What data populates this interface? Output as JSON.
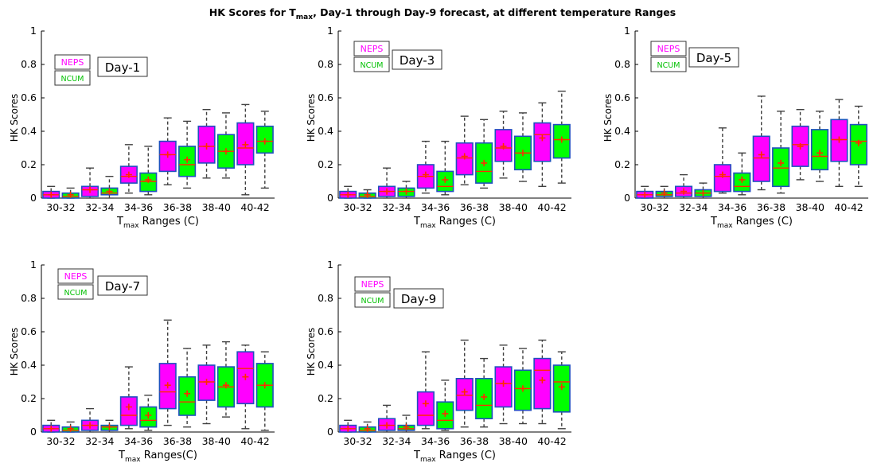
{
  "figure": {
    "title_main": "HK Scores for T",
    "title_sub": "max",
    "title_rest": ", Day-1 through Day-9 forecast, at different temperature Ranges"
  },
  "colors": {
    "neps_fill": "#ff00ff",
    "ncum_fill": "#00ff00",
    "box_edge": "#1f4fbf",
    "median": "#ff2a00",
    "mean_marker": "#ff2a00",
    "whisker": "#404040",
    "neps_legend_text": "#ff00ff",
    "ncum_legend_text": "#00c000"
  },
  "chart_data": [
    {
      "type": "boxplot",
      "panel_label": "Day-1",
      "xlabel_main": "T",
      "xlabel_sub": "max",
      "xlabel_rest": " Ranges (C)",
      "ylabel": "HK Scores",
      "ylim": [
        0,
        1
      ],
      "yticks": [
        "0",
        "0.2",
        "0.4",
        "0.6",
        "0.8",
        "1"
      ],
      "categories": [
        "30-32",
        "32-34",
        "34-36",
        "36-38",
        "38-40",
        "40-42"
      ],
      "legend": [
        "NEPS",
        "NCUM"
      ],
      "series": [
        {
          "name": "NEPS",
          "boxes": [
            {
              "min": 0,
              "q1": 0,
              "median": 0.02,
              "q3": 0.04,
              "max": 0.07,
              "mean": 0.02
            },
            {
              "min": 0,
              "q1": 0.01,
              "median": 0.05,
              "q3": 0.07,
              "max": 0.18,
              "mean": 0.05
            },
            {
              "min": 0.03,
              "q1": 0.09,
              "median": 0.13,
              "q3": 0.19,
              "max": 0.32,
              "mean": 0.14
            },
            {
              "min": 0.08,
              "q1": 0.16,
              "median": 0.26,
              "q3": 0.34,
              "max": 0.48,
              "mean": 0.26
            },
            {
              "min": 0.12,
              "q1": 0.21,
              "median": 0.31,
              "q3": 0.43,
              "max": 0.53,
              "mean": 0.31
            },
            {
              "min": 0.02,
              "q1": 0.2,
              "median": 0.3,
              "q3": 0.45,
              "max": 0.56,
              "mean": 0.32
            }
          ]
        },
        {
          "name": "NCUM",
          "boxes": [
            {
              "min": 0,
              "q1": 0,
              "median": 0.01,
              "q3": 0.03,
              "max": 0.06,
              "mean": 0.02
            },
            {
              "min": 0,
              "q1": 0.02,
              "median": 0.03,
              "q3": 0.06,
              "max": 0.13,
              "mean": 0.04
            },
            {
              "min": 0.02,
              "q1": 0.04,
              "median": 0.1,
              "q3": 0.15,
              "max": 0.31,
              "mean": 0.11
            },
            {
              "min": 0.06,
              "q1": 0.13,
              "median": 0.2,
              "q3": 0.31,
              "max": 0.46,
              "mean": 0.23
            },
            {
              "min": 0.12,
              "q1": 0.18,
              "median": 0.28,
              "q3": 0.38,
              "max": 0.51,
              "mean": 0.28
            },
            {
              "min": 0.06,
              "q1": 0.27,
              "median": 0.34,
              "q3": 0.43,
              "max": 0.52,
              "mean": 0.34
            }
          ]
        }
      ]
    },
    {
      "type": "boxplot",
      "panel_label": "Day-3",
      "xlabel_main": "T",
      "xlabel_sub": "max",
      "xlabel_rest": " Ranges (C)",
      "ylabel": "HK Scores",
      "ylim": [
        0,
        1
      ],
      "yticks": [
        "0",
        "0.2",
        "0.4",
        "0.6",
        "0.8",
        "1"
      ],
      "categories": [
        "30-32",
        "32-34",
        "34-36",
        "36-38",
        "38-40",
        "40-42"
      ],
      "legend": [
        "NEPS",
        "NCUM"
      ],
      "series": [
        {
          "name": "NEPS",
          "boxes": [
            {
              "min": 0,
              "q1": 0,
              "median": 0.02,
              "q3": 0.04,
              "max": 0.07,
              "mean": 0.02
            },
            {
              "min": 0,
              "q1": 0.01,
              "median": 0.04,
              "q3": 0.07,
              "max": 0.18,
              "mean": 0.04
            },
            {
              "min": 0.03,
              "q1": 0.06,
              "median": 0.13,
              "q3": 0.2,
              "max": 0.34,
              "mean": 0.14
            },
            {
              "min": 0.08,
              "q1": 0.14,
              "median": 0.24,
              "q3": 0.33,
              "max": 0.49,
              "mean": 0.25
            },
            {
              "min": 0.12,
              "q1": 0.22,
              "median": 0.3,
              "q3": 0.41,
              "max": 0.52,
              "mean": 0.31
            },
            {
              "min": 0.07,
              "q1": 0.22,
              "median": 0.38,
              "q3": 0.45,
              "max": 0.57,
              "mean": 0.36
            }
          ]
        },
        {
          "name": "NCUM",
          "boxes": [
            {
              "min": 0,
              "q1": 0,
              "median": 0.01,
              "q3": 0.03,
              "max": 0.05,
              "mean": 0.02
            },
            {
              "min": 0,
              "q1": 0.01,
              "median": 0.04,
              "q3": 0.06,
              "max": 0.1,
              "mean": 0.04
            },
            {
              "min": 0.02,
              "q1": 0.04,
              "median": 0.07,
              "q3": 0.16,
              "max": 0.34,
              "mean": 0.11
            },
            {
              "min": 0.06,
              "q1": 0.09,
              "median": 0.16,
              "q3": 0.33,
              "max": 0.47,
              "mean": 0.21
            },
            {
              "min": 0.1,
              "q1": 0.17,
              "median": 0.27,
              "q3": 0.37,
              "max": 0.51,
              "mean": 0.27
            },
            {
              "min": 0.09,
              "q1": 0.24,
              "median": 0.35,
              "q3": 0.44,
              "max": 0.64,
              "mean": 0.35
            }
          ]
        }
      ]
    },
    {
      "type": "boxplot",
      "panel_label": "Day-5",
      "xlabel_main": "T",
      "xlabel_sub": "max",
      "xlabel_rest": " Ranges (C)",
      "ylabel": "HK Scores",
      "ylim": [
        0,
        1
      ],
      "yticks": [
        "0",
        "0.2",
        "0.4",
        "0.6",
        "0.8",
        "1"
      ],
      "categories": [
        "30-32",
        "32-34",
        "34-36",
        "36-38",
        "38-40",
        "40-42"
      ],
      "legend": [
        "NEPS",
        "NCUM"
      ],
      "series": [
        {
          "name": "NEPS",
          "boxes": [
            {
              "min": 0,
              "q1": 0,
              "median": 0.02,
              "q3": 0.04,
              "max": 0.07,
              "mean": 0.02
            },
            {
              "min": 0,
              "q1": 0.01,
              "median": 0.03,
              "q3": 0.07,
              "max": 0.14,
              "mean": 0.04
            },
            {
              "min": 0.03,
              "q1": 0.04,
              "median": 0.13,
              "q3": 0.2,
              "max": 0.42,
              "mean": 0.14
            },
            {
              "min": 0.05,
              "q1": 0.1,
              "median": 0.24,
              "q3": 0.37,
              "max": 0.61,
              "mean": 0.26
            },
            {
              "min": 0.11,
              "q1": 0.19,
              "median": 0.32,
              "q3": 0.43,
              "max": 0.53,
              "mean": 0.31
            },
            {
              "min": 0.07,
              "q1": 0.22,
              "median": 0.35,
              "q3": 0.47,
              "max": 0.59,
              "mean": 0.35
            }
          ]
        },
        {
          "name": "NCUM",
          "boxes": [
            {
              "min": 0,
              "q1": 0.01,
              "median": 0.02,
              "q3": 0.04,
              "max": 0.07,
              "mean": 0.03
            },
            {
              "min": 0,
              "q1": 0.01,
              "median": 0.03,
              "q3": 0.05,
              "max": 0.09,
              "mean": 0.03
            },
            {
              "min": 0.02,
              "q1": 0.04,
              "median": 0.07,
              "q3": 0.15,
              "max": 0.27,
              "mean": 0.11
            },
            {
              "min": 0.03,
              "q1": 0.07,
              "median": 0.18,
              "q3": 0.3,
              "max": 0.52,
              "mean": 0.21
            },
            {
              "min": 0.1,
              "q1": 0.17,
              "median": 0.25,
              "q3": 0.41,
              "max": 0.52,
              "mean": 0.27
            },
            {
              "min": 0.07,
              "q1": 0.2,
              "median": 0.34,
              "q3": 0.44,
              "max": 0.55,
              "mean": 0.33
            }
          ]
        }
      ]
    },
    {
      "type": "boxplot",
      "panel_label": "Day-7",
      "xlabel_main": "T",
      "xlabel_sub": "max",
      "xlabel_rest": " Ranges(C)",
      "ylabel": "HK Scores",
      "ylim": [
        0,
        1
      ],
      "yticks": [
        "0",
        "0.2",
        "0.4",
        "0.6",
        "0.8",
        "1"
      ],
      "categories": [
        "30-32",
        "32-34",
        "34-36",
        "36-38",
        "38-40",
        "40-42"
      ],
      "legend": [
        "NEPS",
        "NCUM"
      ],
      "series": [
        {
          "name": "NEPS",
          "boxes": [
            {
              "min": 0,
              "q1": 0,
              "median": 0.02,
              "q3": 0.04,
              "max": 0.07,
              "mean": 0.02
            },
            {
              "min": 0,
              "q1": 0.01,
              "median": 0.04,
              "q3": 0.07,
              "max": 0.14,
              "mean": 0.04
            },
            {
              "min": 0.02,
              "q1": 0.04,
              "median": 0.1,
              "q3": 0.21,
              "max": 0.39,
              "mean": 0.15
            },
            {
              "min": 0.04,
              "q1": 0.14,
              "median": 0.24,
              "q3": 0.41,
              "max": 0.67,
              "mean": 0.28
            },
            {
              "min": 0.05,
              "q1": 0.19,
              "median": 0.3,
              "q3": 0.4,
              "max": 0.52,
              "mean": 0.3
            },
            {
              "min": 0.02,
              "q1": 0.17,
              "median": 0.38,
              "q3": 0.48,
              "max": 0.52,
              "mean": 0.33
            }
          ]
        },
        {
          "name": "NCUM",
          "boxes": [
            {
              "min": 0,
              "q1": 0,
              "median": 0.01,
              "q3": 0.03,
              "max": 0.06,
              "mean": 0.02
            },
            {
              "min": 0,
              "q1": 0.01,
              "median": 0.03,
              "q3": 0.04,
              "max": 0.07,
              "mean": 0.03
            },
            {
              "min": 0.01,
              "q1": 0.03,
              "median": 0.07,
              "q3": 0.15,
              "max": 0.22,
              "mean": 0.1
            },
            {
              "min": 0.03,
              "q1": 0.1,
              "median": 0.18,
              "q3": 0.33,
              "max": 0.5,
              "mean": 0.23
            },
            {
              "min": 0.09,
              "q1": 0.15,
              "median": 0.27,
              "q3": 0.39,
              "max": 0.54,
              "mean": 0.28
            },
            {
              "min": 0.01,
              "q1": 0.15,
              "median": 0.28,
              "q3": 0.41,
              "max": 0.48,
              "mean": 0.28
            }
          ]
        }
      ]
    },
    {
      "type": "boxplot",
      "panel_label": "Day-9",
      "xlabel_main": "T",
      "xlabel_sub": "max",
      "xlabel_rest": " Ranges (C)",
      "ylabel": "HK Scores",
      "ylim": [
        0,
        1
      ],
      "yticks": [
        "0",
        "0.2",
        "0.4",
        "0.6",
        "0.8",
        "1"
      ],
      "categories": [
        "30-32",
        "32-34",
        "34-36",
        "36-38",
        "38-40",
        "40-42"
      ],
      "legend": [
        "NEPS",
        "NCUM"
      ],
      "series": [
        {
          "name": "NEPS",
          "boxes": [
            {
              "min": 0,
              "q1": 0,
              "median": 0.02,
              "q3": 0.04,
              "max": 0.07,
              "mean": 0.02
            },
            {
              "min": 0,
              "q1": 0.01,
              "median": 0.04,
              "q3": 0.08,
              "max": 0.16,
              "mean": 0.04
            },
            {
              "min": 0.02,
              "q1": 0.04,
              "median": 0.1,
              "q3": 0.24,
              "max": 0.48,
              "mean": 0.17
            },
            {
              "min": 0.03,
              "q1": 0.13,
              "median": 0.22,
              "q3": 0.32,
              "max": 0.55,
              "mean": 0.24
            },
            {
              "min": 0.05,
              "q1": 0.15,
              "median": 0.29,
              "q3": 0.39,
              "max": 0.52,
              "mean": 0.29
            },
            {
              "min": 0.05,
              "q1": 0.14,
              "median": 0.37,
              "q3": 0.44,
              "max": 0.55,
              "mean": 0.31
            }
          ]
        },
        {
          "name": "NCUM",
          "boxes": [
            {
              "min": 0,
              "q1": 0,
              "median": 0.01,
              "q3": 0.03,
              "max": 0.06,
              "mean": 0.02
            },
            {
              "min": 0,
              "q1": 0.01,
              "median": 0.02,
              "q3": 0.04,
              "max": 0.1,
              "mean": 0.03
            },
            {
              "min": 0.01,
              "q1": 0.02,
              "median": 0.07,
              "q3": 0.18,
              "max": 0.31,
              "mean": 0.11
            },
            {
              "min": 0.03,
              "q1": 0.08,
              "median": 0.16,
              "q3": 0.32,
              "max": 0.44,
              "mean": 0.21
            },
            {
              "min": 0.05,
              "q1": 0.13,
              "median": 0.26,
              "q3": 0.37,
              "max": 0.5,
              "mean": 0.26
            },
            {
              "min": 0.02,
              "q1": 0.12,
              "median": 0.3,
              "q3": 0.4,
              "max": 0.48,
              "mean": 0.27
            }
          ]
        }
      ]
    }
  ]
}
